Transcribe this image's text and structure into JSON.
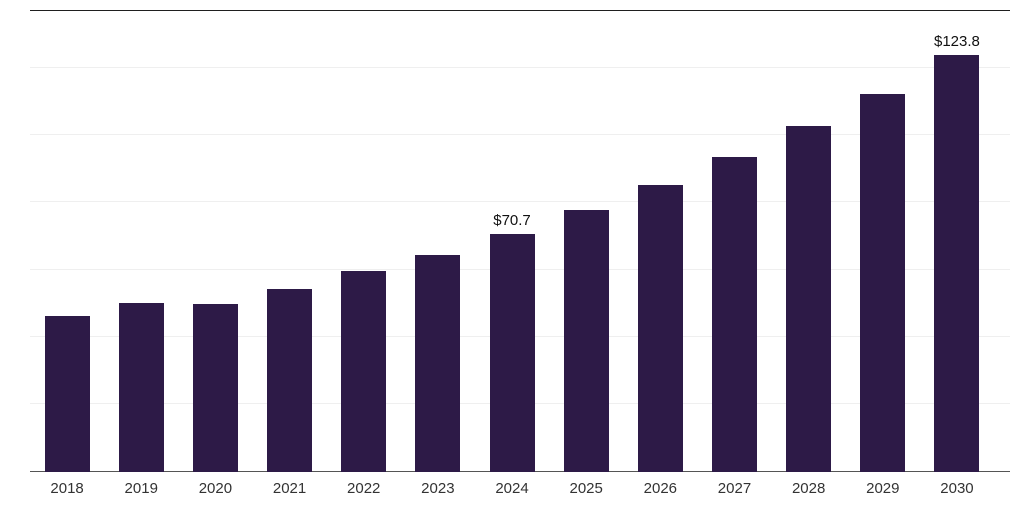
{
  "chart_data": {
    "type": "bar",
    "title": "",
    "xlabel": "",
    "ylabel": "",
    "categories": [
      "2018",
      "2019",
      "2020",
      "2021",
      "2022",
      "2023",
      "2024",
      "2025",
      "2026",
      "2027",
      "2028",
      "2029",
      "2030"
    ],
    "values": [
      46.4,
      50.0,
      49.8,
      54.2,
      59.5,
      64.5,
      70.7,
      77.6,
      85.2,
      93.5,
      102.7,
      112.0,
      123.8
    ],
    "value_labels": [
      "",
      "",
      "",
      "",
      "",
      "",
      "$70.7",
      "",
      "",
      "",
      "",
      "",
      "$123.8"
    ],
    "ylim": [
      0,
      137
    ],
    "gridline_interval": 20,
    "grid": "horizontal",
    "legend": "none",
    "bar_color": "#2d1a47",
    "axis_line_color": "#555555",
    "top_border_color": "#1f1f1f",
    "gridline_color": "#efefef",
    "label_color": "#333333"
  }
}
